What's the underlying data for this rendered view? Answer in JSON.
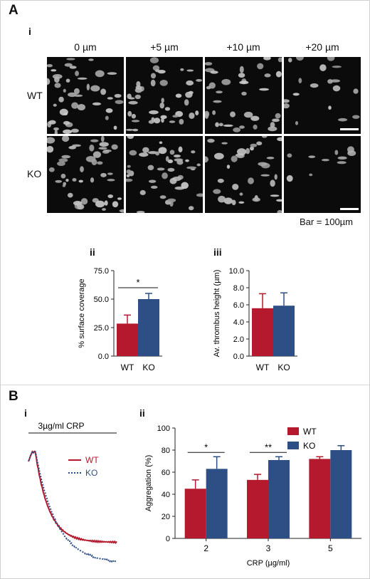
{
  "panels": {
    "A": {
      "letter": "A",
      "i": {
        "label": "i",
        "columns": [
          "0 µm",
          "+5 µm",
          "+10 µm",
          "+20 µm"
        ],
        "rows": [
          "WT",
          "KO"
        ],
        "scale_caption": "Bar = 100µm",
        "image_density": {
          "WT": [
            0.33,
            0.33,
            0.28,
            0.14
          ],
          "KO": [
            0.36,
            0.34,
            0.27,
            0.08
          ]
        }
      },
      "ii": {
        "label": "ii"
      },
      "iii": {
        "label": "iii"
      }
    },
    "B": {
      "letter": "B",
      "i": {
        "label": "i",
        "agonist_label": "3µg/ml CRP"
      },
      "ii": {
        "label": "ii"
      }
    }
  },
  "colors": {
    "wt": "#b5192d",
    "ko": "#2d4f86",
    "axis": "#222222"
  },
  "chart_data": [
    {
      "id": "surface-coverage",
      "type": "bar",
      "categories": [
        "WT",
        "KO"
      ],
      "values": [
        28.5,
        50.0
      ],
      "errors": [
        7.5,
        5.0
      ],
      "ylabel": "% surface coverage",
      "ylim": [
        0,
        75
      ],
      "yticks": [
        "0.0",
        "25.0",
        "50.0",
        "75.0"
      ],
      "significance": [
        {
          "between": [
            "WT",
            "KO"
          ],
          "label": "*"
        }
      ]
    },
    {
      "id": "thrombus-height",
      "type": "bar",
      "categories": [
        "WT",
        "KO"
      ],
      "values": [
        5.6,
        5.9
      ],
      "errors": [
        1.7,
        1.5
      ],
      "ylabel": "Av. thrombus height (µm)",
      "ylim": [
        0,
        10
      ],
      "yticks": [
        "0.0",
        "2.0",
        "4.0",
        "6.0",
        "8.0",
        "10.0"
      ]
    },
    {
      "id": "aggregation-trace",
      "type": "line",
      "series": [
        {
          "name": "WT",
          "style": "solid",
          "start": 1.0,
          "plateau": 0.2
        },
        {
          "name": "KO",
          "style": "dotted",
          "start": 1.0,
          "plateau": 0.02
        }
      ]
    },
    {
      "id": "aggregation-bars",
      "type": "bar",
      "categories": [
        "2",
        "3",
        "5"
      ],
      "series": [
        {
          "name": "WT",
          "values": [
            45,
            53,
            72
          ],
          "errors": [
            8,
            5,
            2
          ]
        },
        {
          "name": "KO",
          "values": [
            63,
            71,
            80
          ],
          "errors": [
            11,
            3,
            4
          ]
        }
      ],
      "xlabel": "CRP (µg/ml)",
      "ylabel": "Aggregation (%)",
      "ylim": [
        0,
        100
      ],
      "yticks": [
        "0",
        "20",
        "40",
        "60",
        "80",
        "100"
      ],
      "legend": "top-right",
      "significance": [
        {
          "category": "2",
          "label": "*"
        },
        {
          "category": "3",
          "label": "**"
        }
      ]
    }
  ]
}
